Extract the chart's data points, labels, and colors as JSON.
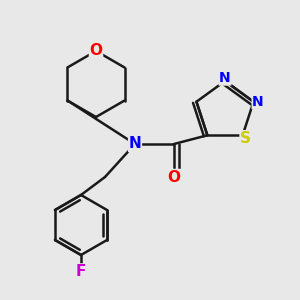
{
  "bg_color": "#e8e8e8",
  "bond_color": "#1a1a1a",
  "bond_width": 1.8,
  "atom_colors": {
    "O": "#ff0000",
    "N": "#0000ff",
    "S": "#cccc00",
    "F": "#cc00cc",
    "C": "#1a1a1a"
  },
  "font_size": 11,
  "fig_width": 3.0,
  "fig_height": 3.0,
  "dpi": 100
}
